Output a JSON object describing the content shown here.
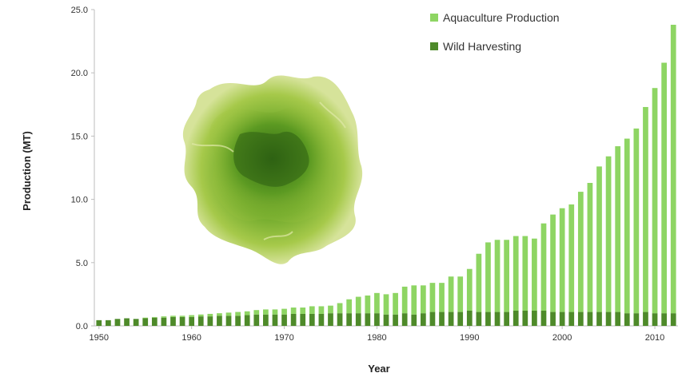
{
  "chart_data": {
    "type": "bar",
    "xlabel": "Year",
    "ylabel": "Production (MT)",
    "ylim": [
      0,
      25
    ],
    "yticks": [
      "0.0",
      "5.0",
      "10.0",
      "15.0",
      "20.0",
      "25.0"
    ],
    "xticks": [
      "1950",
      "1960",
      "1970",
      "1980",
      "1990",
      "2000",
      "2010"
    ],
    "legend_position": "top-right",
    "grid": false,
    "categories": [
      1950,
      1951,
      1952,
      1953,
      1954,
      1955,
      1956,
      1957,
      1958,
      1959,
      1960,
      1961,
      1962,
      1963,
      1964,
      1965,
      1966,
      1967,
      1968,
      1969,
      1970,
      1971,
      1972,
      1973,
      1974,
      1975,
      1976,
      1977,
      1978,
      1979,
      1980,
      1981,
      1982,
      1983,
      1984,
      1985,
      1986,
      1987,
      1988,
      1989,
      1990,
      1991,
      1992,
      1993,
      1994,
      1995,
      1996,
      1997,
      1998,
      1999,
      2000,
      2001,
      2002,
      2003,
      2004,
      2005,
      2006,
      2007,
      2008,
      2009,
      2010,
      2011,
      2012
    ],
    "series": [
      {
        "name": "Aquaculture Production",
        "color": "#8ed563",
        "values": [
          0.0,
          0.0,
          0.0,
          0.0,
          0.0,
          0.05,
          0.05,
          0.1,
          0.1,
          0.1,
          0.15,
          0.15,
          0.2,
          0.2,
          0.25,
          0.3,
          0.3,
          0.35,
          0.4,
          0.4,
          0.45,
          0.5,
          0.5,
          0.6,
          0.6,
          0.6,
          0.8,
          1.1,
          1.3,
          1.4,
          1.6,
          1.6,
          1.7,
          2.1,
          2.3,
          2.2,
          2.3,
          2.3,
          2.8,
          2.8,
          3.3,
          4.6,
          5.5,
          5.7,
          5.7,
          5.9,
          5.9,
          5.7,
          6.9,
          7.7,
          8.2,
          8.5,
          9.5,
          10.2,
          11.5,
          12.3,
          13.1,
          13.8,
          14.6,
          16.2,
          17.8,
          19.8,
          22.8
        ]
      },
      {
        "name": "Wild Harvesting",
        "color": "#4e8a2a",
        "values": [
          0.45,
          0.45,
          0.55,
          0.6,
          0.55,
          0.6,
          0.65,
          0.65,
          0.7,
          0.7,
          0.7,
          0.75,
          0.75,
          0.8,
          0.8,
          0.8,
          0.85,
          0.9,
          0.9,
          0.9,
          0.9,
          0.95,
          0.95,
          0.95,
          0.95,
          1.0,
          1.0,
          1.0,
          1.0,
          1.0,
          1.0,
          0.9,
          0.9,
          1.0,
          0.9,
          1.0,
          1.1,
          1.1,
          1.1,
          1.1,
          1.2,
          1.1,
          1.1,
          1.1,
          1.1,
          1.2,
          1.2,
          1.2,
          1.2,
          1.1,
          1.1,
          1.1,
          1.1,
          1.1,
          1.1,
          1.1,
          1.1,
          1.0,
          1.0,
          1.1,
          1.0,
          1.0,
          1.0
        ]
      }
    ]
  }
}
